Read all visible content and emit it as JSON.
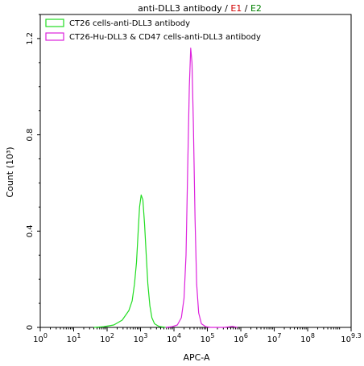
{
  "chart_data": {
    "type": "line",
    "title": {
      "prefix": "anti-DLL3 antibody",
      "sep1": " / ",
      "e1": "E1",
      "sep2": " / ",
      "e2": "E2"
    },
    "title_colors": {
      "base": "#000000",
      "e1": "#d00000",
      "e2": "#008000"
    },
    "xlabel": "APC-A",
    "ylabel": "Count (10³)",
    "xscale": "log",
    "xlim": [
      0,
      9.3
    ],
    "ylim": [
      0,
      1.3
    ],
    "x_ticks": [
      {
        "v": 0,
        "base": "10",
        "exp": "0"
      },
      {
        "v": 1,
        "base": "10",
        "exp": "1"
      },
      {
        "v": 2,
        "base": "10",
        "exp": "2"
      },
      {
        "v": 3,
        "base": "10",
        "exp": "3"
      },
      {
        "v": 4,
        "base": "10",
        "exp": "4"
      },
      {
        "v": 5,
        "base": "10",
        "exp": "5"
      },
      {
        "v": 6,
        "base": "10",
        "exp": "6"
      },
      {
        "v": 7,
        "base": "10",
        "exp": "7"
      },
      {
        "v": 8,
        "base": "10",
        "exp": "8"
      },
      {
        "v": 9.3,
        "base": "10",
        "exp": "9.3"
      }
    ],
    "y_ticks": [
      {
        "v": 0,
        "label": "0"
      },
      {
        "v": 0.4,
        "label": "0.4"
      },
      {
        "v": 0.8,
        "label": "0.8"
      },
      {
        "v": 1.2,
        "label": "1.2"
      }
    ],
    "legend_position": "top-left",
    "series": [
      {
        "name": "CT26 cells-anti-DLL3 antibody",
        "color": "#22dd22",
        "points": [
          [
            1.6,
            0
          ],
          [
            1.9,
            0.003
          ],
          [
            2.2,
            0.01
          ],
          [
            2.45,
            0.03
          ],
          [
            2.65,
            0.07
          ],
          [
            2.75,
            0.11
          ],
          [
            2.82,
            0.18
          ],
          [
            2.88,
            0.27
          ],
          [
            2.93,
            0.4
          ],
          [
            2.97,
            0.5
          ],
          [
            3.02,
            0.55
          ],
          [
            3.07,
            0.53
          ],
          [
            3.12,
            0.43
          ],
          [
            3.17,
            0.3
          ],
          [
            3.22,
            0.18
          ],
          [
            3.28,
            0.09
          ],
          [
            3.34,
            0.04
          ],
          [
            3.42,
            0.015
          ],
          [
            3.55,
            0.004
          ],
          [
            3.75,
            0
          ]
        ]
      },
      {
        "name": "CT26-Hu-DLL3 & CD47 cells-anti-DLL3 antibody",
        "color": "#dd22dd",
        "points": [
          [
            3.75,
            0
          ],
          [
            3.95,
            0.003
          ],
          [
            4.1,
            0.01
          ],
          [
            4.22,
            0.04
          ],
          [
            4.3,
            0.12
          ],
          [
            4.36,
            0.3
          ],
          [
            4.41,
            0.65
          ],
          [
            4.46,
            1.0
          ],
          [
            4.5,
            1.16
          ],
          [
            4.54,
            1.1
          ],
          [
            4.58,
            0.85
          ],
          [
            4.63,
            0.45
          ],
          [
            4.68,
            0.18
          ],
          [
            4.74,
            0.06
          ],
          [
            4.82,
            0.015
          ],
          [
            4.95,
            0.003
          ],
          [
            5.1,
            0
          ],
          [
            5.5,
            0
          ],
          [
            5.75,
            0.004
          ],
          [
            5.9,
            0
          ]
        ]
      }
    ]
  }
}
